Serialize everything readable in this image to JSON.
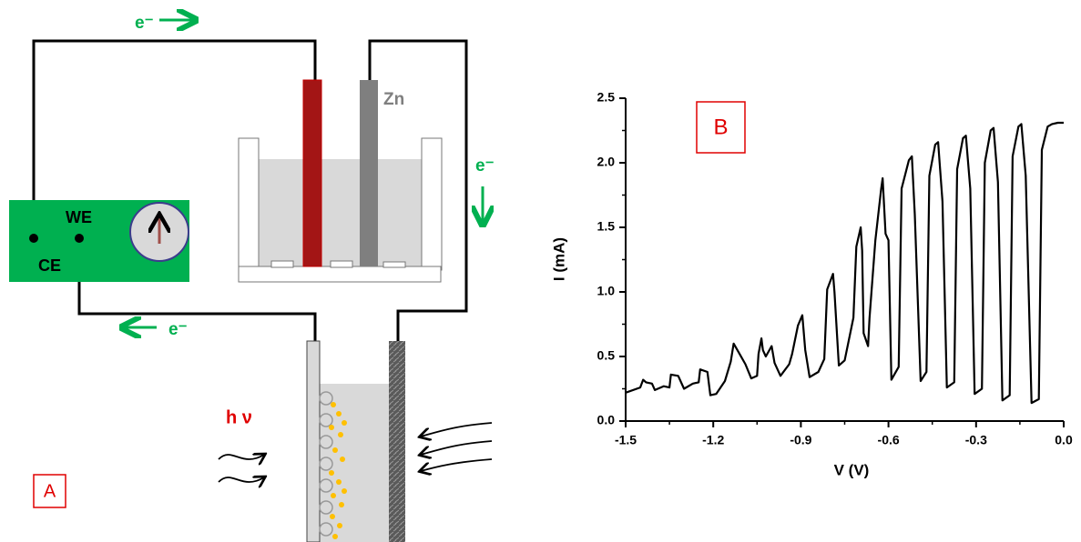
{
  "diagram": {
    "electron_labels": [
      "e⁻",
      "e⁻",
      "e⁻"
    ],
    "electrode_label": "Zn",
    "ce_label": "CE",
    "we_label": "WE",
    "light_label": "h ν",
    "panel_label": "A"
  },
  "chart_data": {
    "type": "line",
    "panel_label": "B",
    "x_label": "V (V)",
    "y_label": "I (mA)",
    "xlim": [
      -1.5,
      0
    ],
    "xticks": [
      -1.5,
      -1.2,
      -0.9,
      -0.6,
      -0.3,
      {
        "value": 0,
        "label": "0.0"
      }
    ],
    "ylim": [
      0,
      2.5
    ],
    "yticks": [
      {
        "value": 0,
        "label": "0.0"
      },
      0.5,
      {
        "value": 1,
        "label": "1.0"
      },
      1.5,
      {
        "value": 2,
        "label": "2.0"
      },
      2.5
    ],
    "series": [
      {
        "color": "#000000",
        "x": [
          -1.5,
          -1.45,
          -1.44,
          -1.43,
          -1.41,
          -1.4,
          -1.37,
          -1.35,
          -1.345,
          -1.32,
          -1.3,
          -1.27,
          -1.25,
          -1.245,
          -1.22,
          -1.21,
          -1.19,
          -1.16,
          -1.14,
          -1.13,
          -1.11,
          -1.09,
          -1.07,
          -1.05,
          -1.045,
          -1.035,
          -1.03,
          -1.02,
          -1.0,
          -0.99,
          -0.97,
          -0.94,
          -0.93,
          -0.91,
          -0.895,
          -0.885,
          -0.87,
          -0.84,
          -0.82,
          -0.81,
          -0.79,
          -0.785,
          -0.77,
          -0.75,
          -0.72,
          -0.71,
          -0.695,
          -0.69,
          -0.685,
          -0.67,
          -0.665,
          -0.645,
          -0.625,
          -0.62,
          -0.61,
          -0.6,
          -0.59,
          -0.565,
          -0.555,
          -0.53,
          -0.52,
          -0.51,
          -0.49,
          -0.47,
          -0.46,
          -0.44,
          -0.43,
          -0.415,
          -0.4,
          -0.375,
          -0.365,
          -0.345,
          -0.335,
          -0.32,
          -0.305,
          -0.28,
          -0.27,
          -0.25,
          -0.24,
          -0.225,
          -0.21,
          -0.185,
          -0.175,
          -0.155,
          -0.145,
          -0.13,
          -0.11,
          -0.085,
          -0.075,
          -0.055,
          -0.04,
          -0.02,
          0
        ],
        "values": [
          0.22,
          0.26,
          0.32,
          0.3,
          0.29,
          0.24,
          0.27,
          0.26,
          0.36,
          0.35,
          0.25,
          0.29,
          0.3,
          0.4,
          0.38,
          0.2,
          0.21,
          0.31,
          0.46,
          0.6,
          0.52,
          0.44,
          0.33,
          0.35,
          0.52,
          0.64,
          0.55,
          0.5,
          0.58,
          0.45,
          0.35,
          0.44,
          0.52,
          0.74,
          0.82,
          0.55,
          0.34,
          0.38,
          0.48,
          1.02,
          1.14,
          1.0,
          0.43,
          0.47,
          0.8,
          1.35,
          1.5,
          1.32,
          0.68,
          0.58,
          0.8,
          1.4,
          1.8,
          1.88,
          1.45,
          1.4,
          0.32,
          0.42,
          1.8,
          2.02,
          2.05,
          1.6,
          0.31,
          0.38,
          1.9,
          2.14,
          2.16,
          1.7,
          0.26,
          0.3,
          1.95,
          2.19,
          2.21,
          1.8,
          0.21,
          0.25,
          2.0,
          2.25,
          2.27,
          1.85,
          0.16,
          0.2,
          2.05,
          2.28,
          2.3,
          1.9,
          0.14,
          0.17,
          2.1,
          2.28,
          2.3,
          2.31,
          2.31
        ]
      }
    ]
  }
}
